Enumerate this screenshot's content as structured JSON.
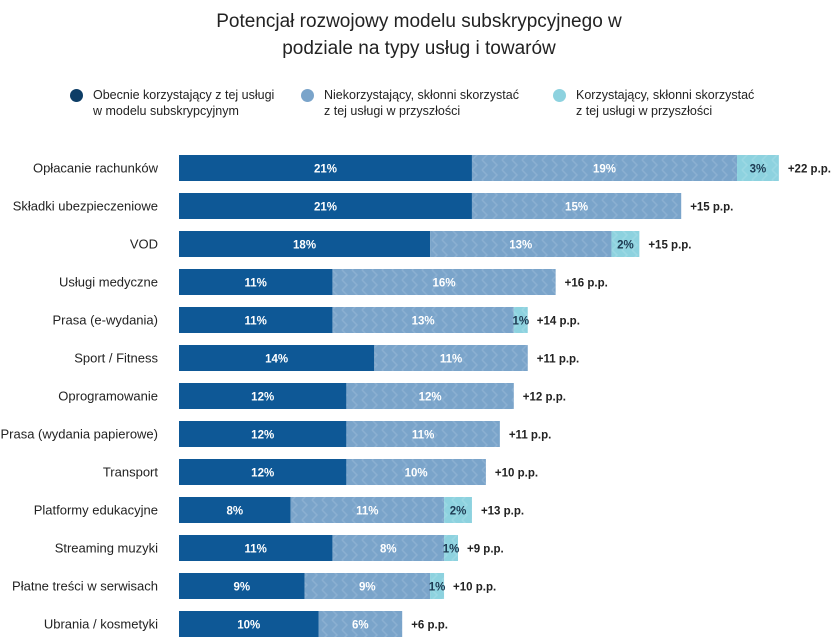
{
  "chart_data": {
    "type": "bar",
    "orientation": "horizontal",
    "stacked": true,
    "title": "Potencjał rozwojowy modelu subskrypcyjnego w podziale na typy usług i towarów",
    "legend_position": "top",
    "grid": false,
    "xlim": [
      0,
      45
    ],
    "categories": [
      "Opłacanie rachunków",
      "Składki ubezpieczeniowe",
      "VOD",
      "Usługi medyczne",
      "Prasa (e-wydania)",
      "Sport / Fitness",
      "Oprogramowanie",
      "Prasa (wydania papierowe)",
      "Transport",
      "Platformy edukacyjne",
      "Streaming muzyki",
      "Płatne treści w serwisach",
      "Ubrania / kosmetyki"
    ],
    "series": [
      {
        "name": "Obecnie korzystający z tej usługi\nw modelu subskrypcyjnym",
        "color": "#0e5896",
        "legend_color": "#0d3d66",
        "values": [
          21,
          21,
          18,
          11,
          11,
          14,
          12,
          12,
          12,
          8,
          11,
          9,
          10
        ]
      },
      {
        "name": "Niekorzystający, skłonni skorzystać\nz tej usługi w przyszłości",
        "color": "#7aa4ca",
        "legend_color": "#7aa4ca",
        "values": [
          19,
          15,
          13,
          16,
          13,
          11,
          12,
          11,
          10,
          11,
          8,
          9,
          6
        ]
      },
      {
        "name": "Korzystający, skłonni skorzystać\nz tej usługi w przyszłości",
        "color": "#8dd2df",
        "legend_color": "#8dd2df",
        "values": [
          3,
          0,
          2,
          0,
          1,
          0,
          0,
          0,
          0,
          2,
          1,
          1,
          0
        ]
      }
    ],
    "totals_labels": [
      "+22 p.p.",
      "+15 p.p.",
      "+15 p.p.",
      "+16 p.p.",
      "+14 p.p.",
      "+11 p.p.",
      "+12 p.p.",
      "+11 p.p.",
      "+10 p.p.",
      "+13 p.p.",
      "+9 p.p.",
      "+10 p.p.",
      "+6 p.p."
    ],
    "value_suffix": "%"
  }
}
